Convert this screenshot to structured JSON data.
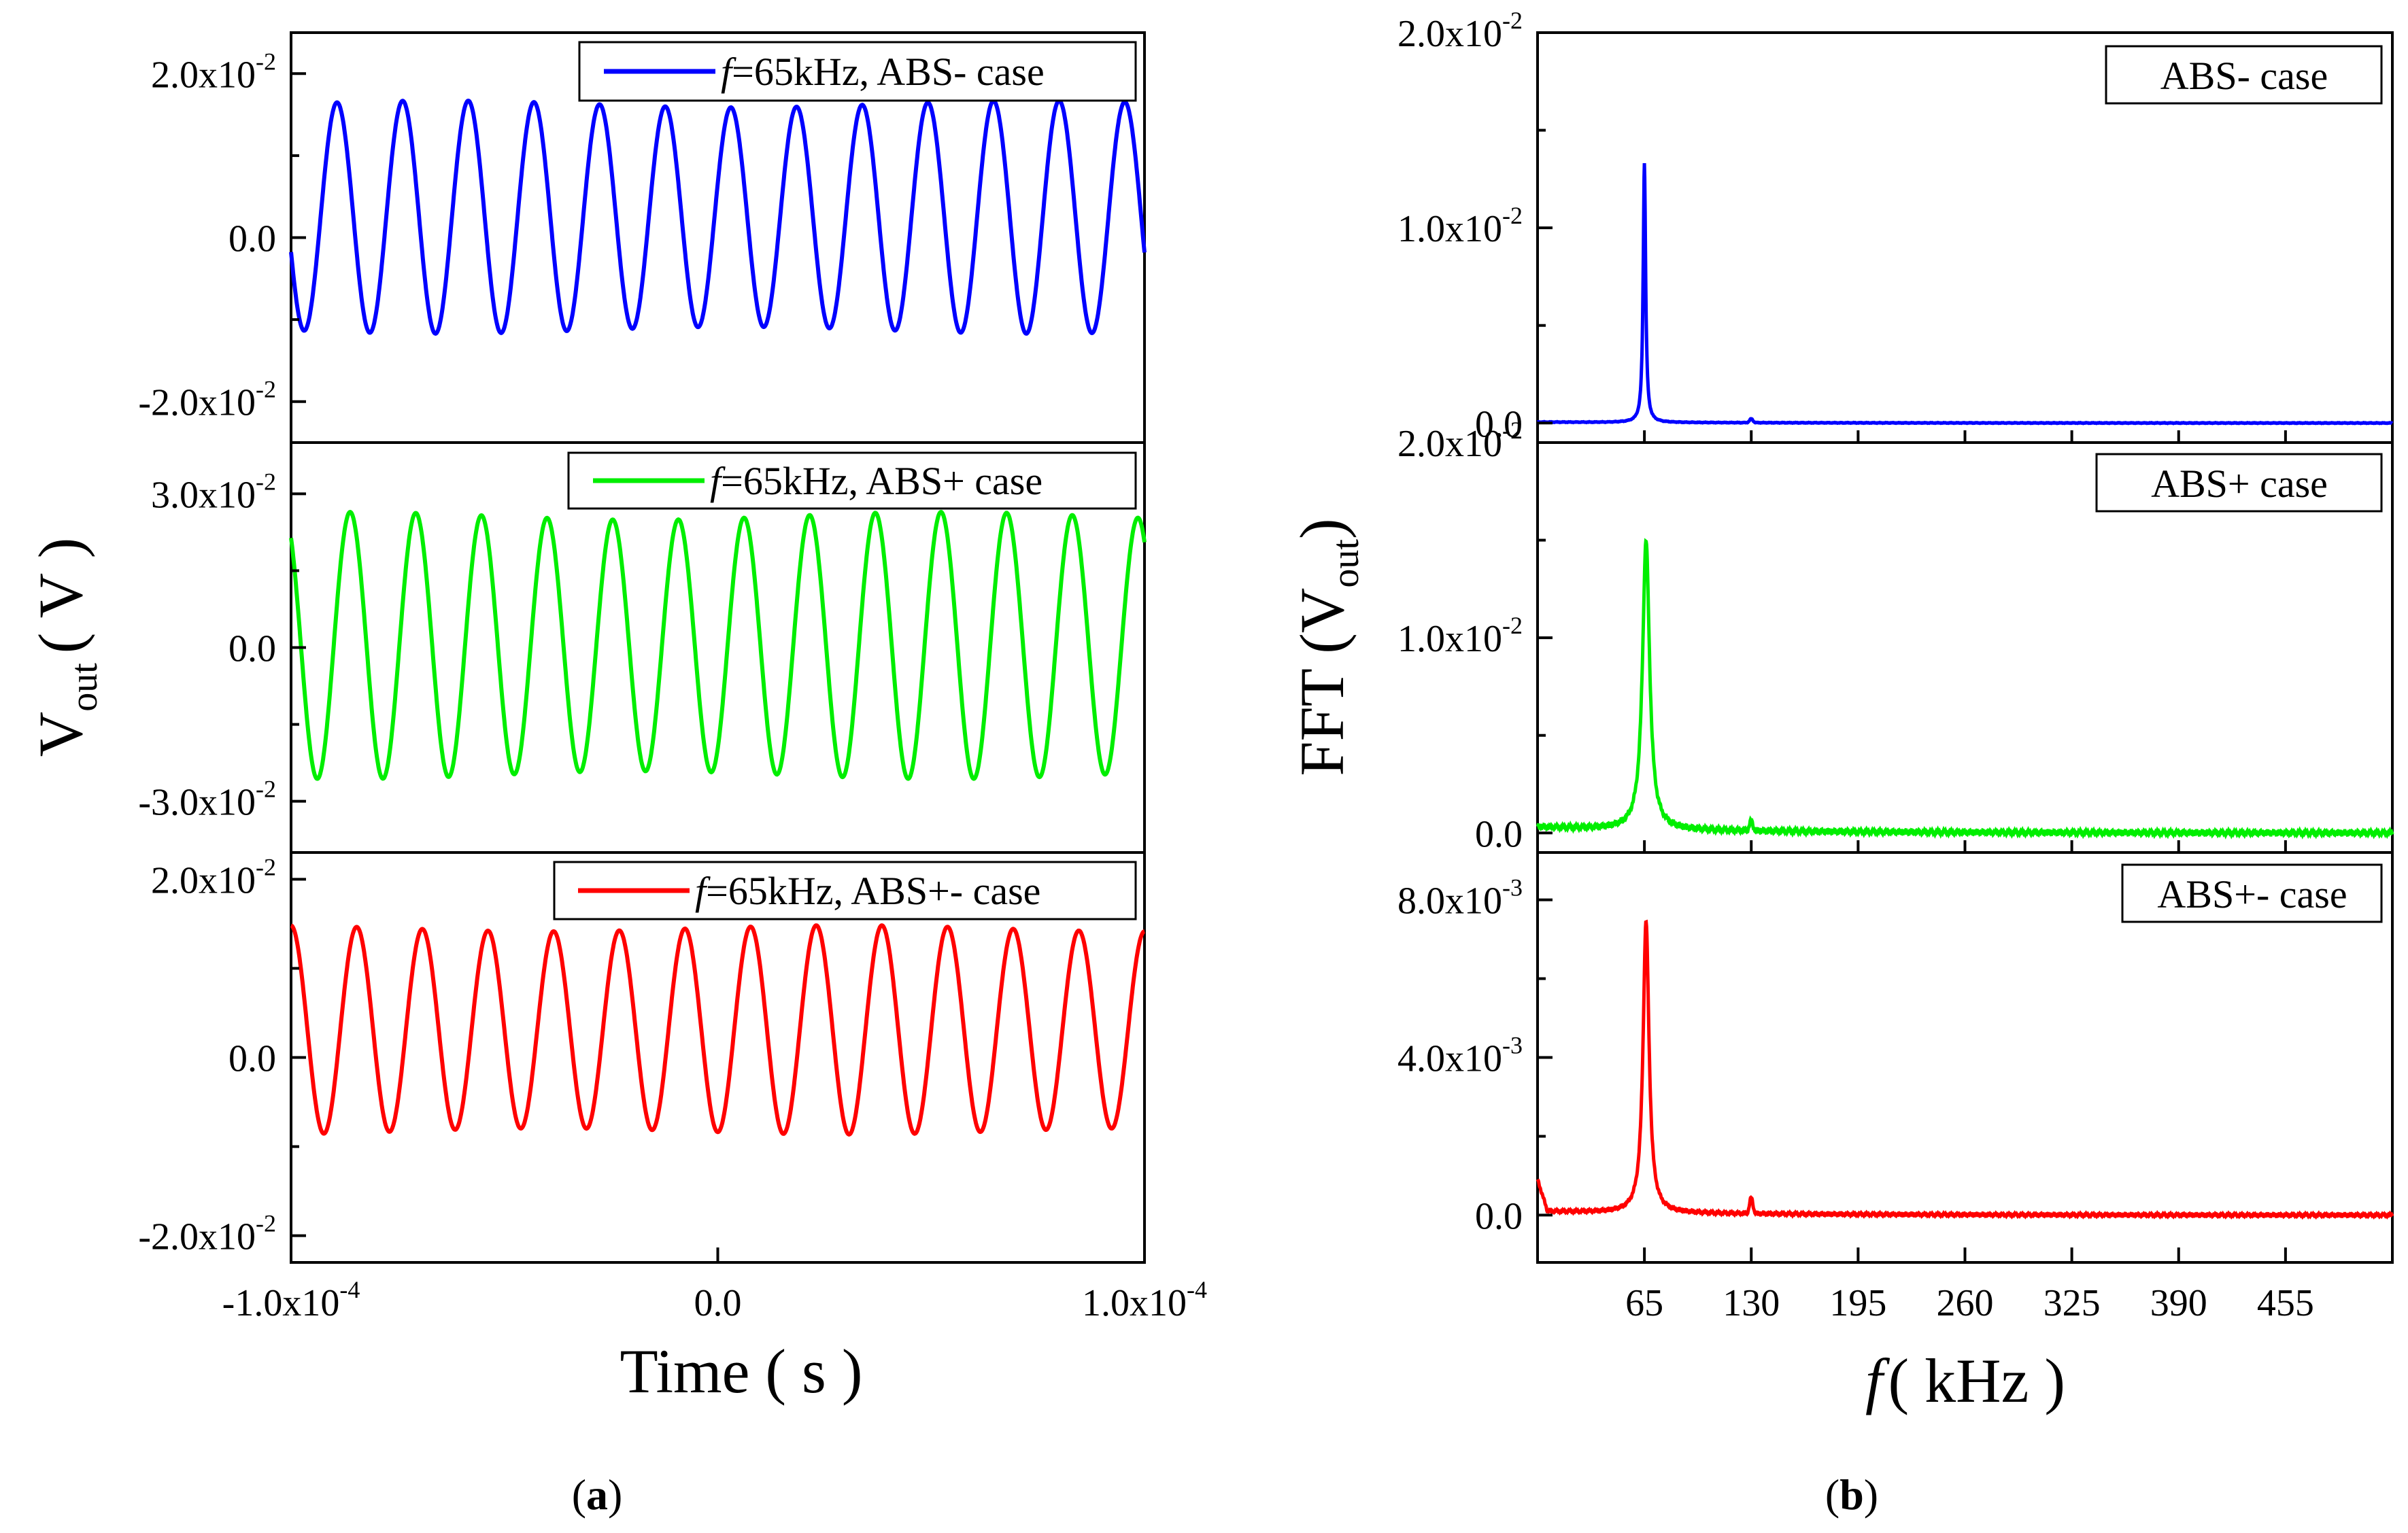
{
  "chart_data": [
    {
      "id": "a1",
      "type": "line",
      "panel": "a",
      "xlabel": "Time ( s )",
      "ylabel_main": "V",
      "ylabel_sub": "out",
      "ylabel_unit": "( V )",
      "xlim": [
        -0.0001,
        0.0001
      ],
      "ylim": [
        -0.025,
        0.025
      ],
      "yticks": [
        {
          "value": 0.02,
          "mant": "2.0x10",
          "exp": "-2"
        },
        {
          "value": 0.0,
          "mant": "0.0",
          "exp": ""
        },
        {
          "value": -0.02,
          "mant": "-2.0x10",
          "exp": "-2"
        }
      ],
      "series": [
        {
          "name": "f=65kHz, ABS- case",
          "legend_italic": "f",
          "legend_rest": "=65kHz, ABS- case",
          "color": "#0000ff",
          "frequency_khz": 65,
          "amplitude": 0.0138,
          "offset": 0.0025,
          "cycles": 13
        }
      ]
    },
    {
      "id": "a2",
      "type": "line",
      "panel": "a",
      "xlim": [
        -0.0001,
        0.0001
      ],
      "ylim": [
        -0.04,
        0.04
      ],
      "yticks": [
        {
          "value": 0.03,
          "mant": "3.0x10",
          "exp": "-2"
        },
        {
          "value": 0.0,
          "mant": "0.0",
          "exp": ""
        },
        {
          "value": -0.03,
          "mant": "-3.0x10",
          "exp": "-2"
        }
      ],
      "series": [
        {
          "name": "f=65kHz, ABS+ case",
          "legend_italic": "f",
          "legend_rest": "=65kHz, ABS+ case",
          "color": "#00ee00",
          "frequency_khz": 65,
          "amplitude": 0.0253,
          "offset": 0.0004,
          "cycles": 13
        }
      ]
    },
    {
      "id": "a3",
      "type": "line",
      "panel": "a",
      "xlim": [
        -0.0001,
        0.0001
      ],
      "ylim": [
        -0.023,
        0.023
      ],
      "yticks": [
        {
          "value": 0.02,
          "mant": "2.0x10",
          "exp": "-2"
        },
        {
          "value": 0.0,
          "mant": "0.0",
          "exp": ""
        },
        {
          "value": -0.02,
          "mant": "-2.0x10",
          "exp": "-2"
        }
      ],
      "xticks": [
        {
          "value": -0.0001,
          "mant": "-1.0x10",
          "exp": "-4"
        },
        {
          "value": 0.0,
          "mant": "0.0",
          "exp": ""
        },
        {
          "value": 0.0001,
          "mant": "1.0x10",
          "exp": "-4"
        }
      ],
      "series": [
        {
          "name": "f=65kHz, ABS+- case",
          "legend_italic": "f",
          "legend_rest": "=65kHz, ABS+- case",
          "color": "#ff0000",
          "frequency_khz": 65,
          "amplitude": 0.0114,
          "offset": 0.0031,
          "cycles": 13
        }
      ]
    },
    {
      "id": "b1",
      "type": "line",
      "panel": "b",
      "xlabel_italic": "f",
      "xlabel_rest": "( kHz )",
      "ylabel_main": "FFT (V",
      "ylabel_sub": "out",
      "ylabel_close": ")",
      "xlim": [
        0,
        520
      ],
      "ylim": [
        -0.001,
        0.02
      ],
      "yticks": [
        {
          "value": 0.02,
          "mant": "2.0x10",
          "exp": "-2"
        },
        {
          "value": 0.01,
          "mant": "1.0x10",
          "exp": "-2"
        },
        {
          "value": 0.0,
          "mant": "0.0",
          "exp": ""
        }
      ],
      "legend": "ABS- case",
      "series": [
        {
          "name": "ABS- case",
          "color": "#0000ff",
          "peak_khz": 65,
          "peak_value": 0.0133,
          "width_khz": 0.9,
          "baseline": 5e-05,
          "small_peak_khz": 130,
          "small_peak_value": 0.0002
        }
      ]
    },
    {
      "id": "b2",
      "type": "line",
      "panel": "b",
      "xlim": [
        0,
        520
      ],
      "ylim": [
        -0.001,
        0.02
      ],
      "yticks": [
        {
          "value": 0.02,
          "mant": "2.0x10",
          "exp": "-2"
        },
        {
          "value": 0.01,
          "mant": "1.0x10",
          "exp": "-2"
        },
        {
          "value": 0.0,
          "mant": "0.0",
          "exp": ""
        }
      ],
      "legend": "ABS+ case",
      "series": [
        {
          "name": "ABS+ case",
          "color": "#00ee00",
          "peak_khz": 66,
          "peak_value": 0.0148,
          "width_khz": 2.6,
          "baseline": 0.0003,
          "small_peak_khz": 130,
          "small_peak_value": 0.0005
        }
      ]
    },
    {
      "id": "b3",
      "type": "line",
      "panel": "b",
      "xlim": [
        0,
        520
      ],
      "ylim": [
        -0.0012,
        0.0092
      ],
      "yticks": [
        {
          "value": 0.008,
          "mant": "8.0x10",
          "exp": "-3"
        },
        {
          "value": 0.004,
          "mant": "4.0x10",
          "exp": "-3"
        },
        {
          "value": 0.0,
          "mant": "0.0",
          "exp": ""
        }
      ],
      "xticks": [
        {
          "value": 65,
          "label": "65"
        },
        {
          "value": 130,
          "label": "130"
        },
        {
          "value": 195,
          "label": "195"
        },
        {
          "value": 260,
          "label": "260"
        },
        {
          "value": 325,
          "label": "325"
        },
        {
          "value": 390,
          "label": "390"
        },
        {
          "value": 455,
          "label": "455"
        }
      ],
      "legend": "ABS+- case",
      "series": [
        {
          "name": "ABS+- case",
          "color": "#ff0000",
          "peak_khz": 66,
          "peak_value": 0.0074,
          "width_khz": 2.2,
          "baseline": 0.0001,
          "small_peak_khz": 130,
          "small_peak_value": 0.0004
        }
      ]
    }
  ],
  "captions": {
    "a_open": "(",
    "a_letter": "a",
    "a_close": ")",
    "b_open": "(",
    "b_letter": "b",
    "b_close": ")"
  }
}
